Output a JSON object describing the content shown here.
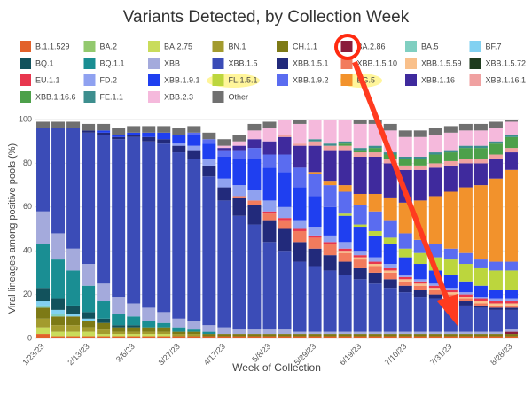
{
  "chart_data": {
    "type": "bar",
    "stacked": true,
    "title": "Variants Detected, by Collection Week",
    "x_label": "Week of Collection",
    "y_label": "Viral lineages among positive pools (%)",
    "categories": [
      "1/23/23",
      null,
      null,
      "2/13/23",
      null,
      null,
      "3/6/23",
      null,
      null,
      "3/27/23",
      null,
      null,
      "4/17/23",
      null,
      null,
      "5/8/23",
      null,
      null,
      "5/29/23",
      null,
      null,
      "6/19/23",
      null,
      null,
      "7/10/23",
      null,
      null,
      "7/31/23",
      null,
      null,
      null,
      "8/28/23"
    ],
    "ylim": [
      0,
      100
    ],
    "yticks": [
      0,
      20,
      40,
      60,
      80,
      100
    ],
    "grid": true,
    "series": [
      {
        "name": "B.1.1.529",
        "color": "#e2612b",
        "values": [
          2,
          1,
          1,
          1,
          1,
          1,
          1,
          1,
          1,
          1,
          1,
          1,
          1,
          1,
          1,
          1,
          1,
          1,
          1,
          1,
          1,
          1,
          1,
          1,
          1,
          1,
          1,
          1,
          1,
          1,
          1,
          1
        ]
      },
      {
        "name": "BA.2",
        "color": "#93c96e",
        "values": [
          0,
          0,
          0,
          0,
          0,
          0,
          0,
          0,
          0,
          0,
          0,
          0,
          0,
          0,
          0,
          0,
          0,
          0,
          0,
          0,
          0,
          0,
          0,
          0,
          0,
          0,
          0,
          0,
          0,
          0,
          0,
          0
        ]
      },
      {
        "name": "BA.2.75",
        "color": "#c9dc5b",
        "values": [
          3,
          2,
          2,
          2,
          1,
          1,
          1,
          1,
          1,
          0,
          0,
          0,
          0,
          0,
          0,
          0,
          0,
          0,
          0,
          0,
          0,
          0,
          0,
          0,
          0,
          0,
          0,
          0,
          0,
          0,
          0,
          0
        ]
      },
      {
        "name": "BN.1",
        "color": "#a39b2e",
        "values": [
          4,
          3,
          3,
          2,
          2,
          1,
          1,
          1,
          1,
          1,
          1,
          0,
          0,
          0,
          0,
          0,
          0,
          0,
          0,
          0,
          0,
          0,
          0,
          0,
          0,
          0,
          0,
          0,
          0,
          0,
          0,
          0
        ]
      },
      {
        "name": "CH.1.1",
        "color": "#7d7a16",
        "values": [
          5,
          4,
          4,
          3,
          3,
          2,
          2,
          2,
          2,
          1,
          1,
          1,
          1,
          1,
          1,
          1,
          1,
          1,
          1,
          1,
          1,
          1,
          1,
          1,
          1,
          1,
          1,
          1,
          1,
          1,
          1,
          1
        ]
      },
      {
        "name": "BA.2.86",
        "color": "#8a1b3b",
        "values": [
          0,
          0,
          0,
          0,
          0,
          0,
          0,
          0,
          0,
          0,
          0,
          0,
          0,
          0,
          0,
          0,
          0,
          0,
          0,
          0,
          0,
          0,
          0,
          0,
          0,
          0,
          0,
          0,
          0,
          0,
          0,
          1
        ]
      },
      {
        "name": "BA.5",
        "color": "#80cfc1",
        "values": [
          1,
          1,
          0,
          0,
          0,
          0,
          0,
          0,
          0,
          0,
          0,
          0,
          0,
          0,
          0,
          0,
          0,
          0,
          0,
          0,
          0,
          0,
          0,
          0,
          0,
          0,
          0,
          0,
          0,
          0,
          0,
          0
        ]
      },
      {
        "name": "BF.7",
        "color": "#82d1f1",
        "values": [
          2,
          2,
          1,
          1,
          0,
          0,
          0,
          0,
          0,
          0,
          0,
          0,
          0,
          0,
          0,
          0,
          0,
          0,
          0,
          0,
          0,
          0,
          0,
          0,
          0,
          0,
          0,
          0,
          0,
          0,
          0,
          0
        ]
      },
      {
        "name": "BQ.1",
        "color": "#12525c",
        "values": [
          6,
          5,
          4,
          3,
          2,
          1,
          1,
          0,
          0,
          0,
          0,
          0,
          0,
          0,
          0,
          0,
          0,
          0,
          0,
          0,
          0,
          0,
          0,
          0,
          0,
          0,
          0,
          0,
          0,
          0,
          0,
          0
        ]
      },
      {
        "name": "BQ.1.1",
        "color": "#1a8e93",
        "values": [
          20,
          18,
          16,
          12,
          8,
          5,
          4,
          3,
          2,
          2,
          1,
          1,
          0,
          0,
          0,
          0,
          0,
          0,
          0,
          0,
          0,
          0,
          0,
          0,
          0,
          0,
          0,
          0,
          0,
          0,
          0,
          0
        ]
      },
      {
        "name": "XBB",
        "color": "#a4aadc",
        "values": [
          15,
          12,
          10,
          10,
          8,
          8,
          6,
          6,
          5,
          4,
          4,
          3,
          3,
          2,
          2,
          2,
          2,
          1,
          1,
          1,
          1,
          1,
          1,
          1,
          1,
          1,
          1,
          1,
          1,
          1,
          1,
          1
        ]
      },
      {
        "name": "XBB.1.5",
        "color": "#3b4cb7",
        "values": [
          38,
          48,
          55,
          60,
          68,
          72,
          76,
          76,
          77,
          76,
          74,
          68,
          58,
          52,
          48,
          40,
          36,
          32,
          30,
          28,
          26,
          24,
          22,
          20,
          18,
          16,
          15,
          14,
          12,
          11,
          10,
          9
        ]
      },
      {
        "name": "XBB.1.5.1",
        "color": "#222a7b",
        "values": [
          0,
          0,
          0,
          1,
          1,
          1,
          1,
          2,
          2,
          3,
          4,
          5,
          6,
          8,
          9,
          10,
          10,
          9,
          8,
          7,
          6,
          5,
          5,
          4,
          3,
          3,
          2,
          2,
          2,
          1,
          1,
          1
        ]
      },
      {
        "name": "XBB.1.5.10",
        "color": "#f27b5d",
        "values": [
          0,
          0,
          0,
          0,
          0,
          0,
          0,
          0,
          0,
          0,
          0,
          0,
          0,
          1,
          2,
          3,
          4,
          5,
          5,
          5,
          4,
          4,
          3,
          3,
          2,
          2,
          2,
          1,
          1,
          1,
          1,
          1
        ]
      },
      {
        "name": "XBB.1.5.59",
        "color": "#f9c08b",
        "values": [
          0,
          0,
          0,
          0,
          0,
          0,
          0,
          0,
          0,
          0,
          0,
          0,
          0,
          0,
          0,
          0,
          0,
          0,
          0,
          0,
          1,
          1,
          1,
          1,
          1,
          1,
          1,
          1,
          1,
          1,
          1,
          1
        ]
      },
      {
        "name": "XBB.1.5.72",
        "color": "#1e3b1e",
        "values": [
          0,
          0,
          0,
          0,
          0,
          0,
          0,
          0,
          0,
          0,
          0,
          0,
          0,
          0,
          0,
          0,
          0,
          0,
          0,
          0,
          0,
          0,
          0,
          0,
          0,
          0,
          0,
          0,
          0,
          0,
          0,
          0
        ]
      },
      {
        "name": "EU.1.1",
        "color": "#e8364e",
        "values": [
          0,
          0,
          0,
          0,
          0,
          0,
          0,
          0,
          0,
          0,
          0,
          0,
          0,
          0,
          0,
          1,
          1,
          1,
          1,
          1,
          1,
          1,
          1,
          1,
          1,
          1,
          1,
          1,
          1,
          1,
          1,
          1
        ]
      },
      {
        "name": "FD.2",
        "color": "#8fa1f0",
        "values": [
          0,
          0,
          0,
          0,
          0,
          0,
          0,
          0,
          0,
          1,
          2,
          3,
          4,
          5,
          5,
          5,
          5,
          4,
          4,
          3,
          3,
          2,
          2,
          2,
          1,
          1,
          1,
          1,
          1,
          1,
          1,
          1
        ]
      },
      {
        "name": "XBB.1.9.1",
        "color": "#1f3ff0",
        "values": [
          0,
          0,
          0,
          0,
          1,
          1,
          1,
          2,
          3,
          4,
          5,
          7,
          10,
          12,
          14,
          15,
          16,
          15,
          14,
          13,
          12,
          11,
          10,
          9,
          8,
          7,
          6,
          6,
          5,
          5,
          4,
          4
        ]
      },
      {
        "name": "FL.1.5.1",
        "color": "#bcd63d",
        "values": [
          0,
          0,
          0,
          0,
          0,
          0,
          0,
          0,
          0,
          0,
          0,
          0,
          0,
          0,
          0,
          0,
          0,
          0,
          0,
          0,
          1,
          1,
          2,
          3,
          4,
          5,
          6,
          7,
          8,
          8,
          9,
          9
        ]
      },
      {
        "name": "XBB.1.9.2",
        "color": "#5a6cf0",
        "values": [
          0,
          0,
          0,
          0,
          0,
          0,
          0,
          0,
          0,
          0,
          1,
          2,
          3,
          4,
          5,
          6,
          8,
          9,
          10,
          10,
          10,
          9,
          9,
          8,
          7,
          6,
          6,
          5,
          5,
          4,
          4,
          4
        ]
      },
      {
        "name": "EG.5",
        "color": "#f2922c",
        "values": [
          0,
          0,
          0,
          0,
          0,
          0,
          0,
          0,
          0,
          0,
          0,
          0,
          0,
          0,
          0,
          0,
          0,
          0,
          1,
          2,
          3,
          5,
          8,
          10,
          14,
          18,
          22,
          26,
          30,
          34,
          38,
          42
        ]
      },
      {
        "name": "XBB.1.16",
        "color": "#3f2a9d",
        "values": [
          0,
          0,
          0,
          0,
          0,
          0,
          0,
          0,
          0,
          0,
          0,
          0,
          1,
          2,
          4,
          6,
          8,
          10,
          12,
          14,
          16,
          17,
          17,
          16,
          15,
          14,
          13,
          12,
          11,
          10,
          9,
          8
        ]
      },
      {
        "name": "XBB.1.16.1",
        "color": "#f0a1a1",
        "values": [
          0,
          0,
          0,
          0,
          0,
          0,
          0,
          0,
          0,
          0,
          0,
          0,
          0,
          0,
          0,
          0,
          1,
          1,
          2,
          2,
          2,
          2,
          2,
          2,
          2,
          2,
          2,
          2,
          2,
          2,
          2,
          2
        ]
      },
      {
        "name": "XBB.1.16.6",
        "color": "#4da04a",
        "values": [
          0,
          0,
          0,
          0,
          0,
          0,
          0,
          0,
          0,
          0,
          0,
          0,
          0,
          0,
          0,
          0,
          0,
          0,
          0,
          0,
          1,
          1,
          2,
          2,
          3,
          3,
          4,
          4,
          5,
          5,
          5,
          5
        ]
      },
      {
        "name": "FE.1.1",
        "color": "#3d8e8e",
        "values": [
          0,
          0,
          0,
          0,
          0,
          0,
          0,
          0,
          0,
          0,
          0,
          0,
          0,
          0,
          0,
          0,
          0,
          0,
          1,
          1,
          1,
          1,
          1,
          1,
          1,
          1,
          1,
          1,
          1,
          1,
          1,
          1
        ]
      },
      {
        "name": "XBB.2.3",
        "color": "#f5b9dc",
        "values": [
          0,
          0,
          0,
          0,
          0,
          0,
          0,
          0,
          0,
          0,
          0,
          0,
          1,
          2,
          4,
          6,
          8,
          9,
          10,
          11,
          11,
          11,
          10,
          10,
          9,
          9,
          8,
          8,
          7,
          7,
          6,
          6
        ]
      },
      {
        "name": "Other",
        "color": "#707070",
        "values": [
          3,
          3,
          3,
          3,
          3,
          3,
          3,
          3,
          3,
          3,
          3,
          3,
          3,
          3,
          3,
          3,
          3,
          3,
          3,
          3,
          3,
          3,
          3,
          3,
          3,
          3,
          3,
          3,
          3,
          3,
          3,
          3
        ]
      }
    ]
  }
}
